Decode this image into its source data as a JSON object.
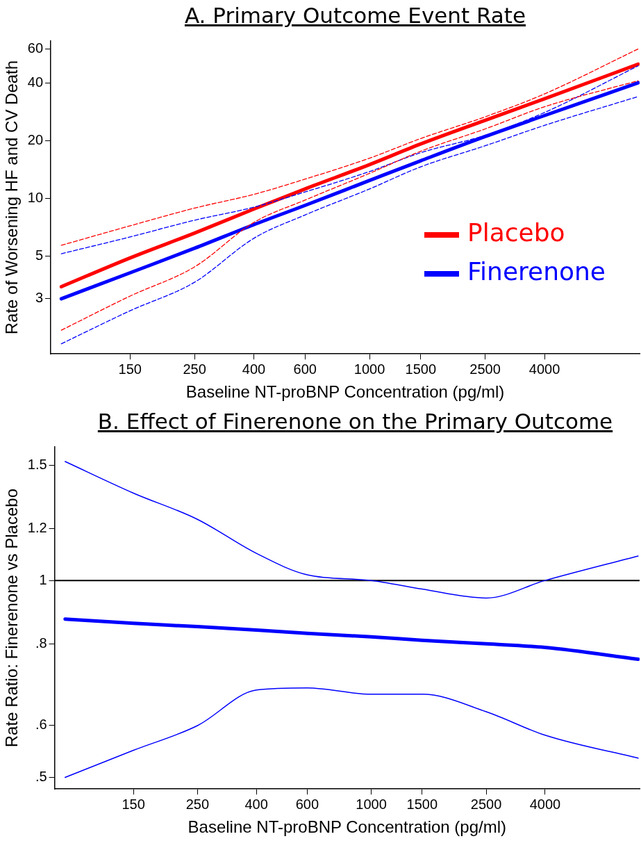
{
  "chart_data": [
    {
      "type": "line",
      "title": "A. Primary Outcome Event Rate",
      "xlabel": "Baseline NT-proBNP Concentration (pg/ml)",
      "ylabel": "Rate of Worsening HF and CV Death",
      "log": "xy",
      "grid": false,
      "legend": "right",
      "marker": "none",
      "x": [
        87,
        150,
        250,
        400,
        600,
        1000,
        1500,
        2500,
        4000,
        8400
      ],
      "xlim": [
        80,
        8500
      ],
      "xticks": [
        150,
        250,
        400,
        600,
        1000,
        1500,
        2500,
        4000
      ],
      "ylim": [
        1.55,
        66
      ],
      "yticks": [
        3,
        5,
        10,
        20,
        40,
        60
      ],
      "series": [
        {
          "name": "Placebo",
          "color": "#ff0000",
          "line_style": "solid",
          "values": [
            3.47,
            4.9,
            6.6,
            8.8,
            11.2,
            15,
            19.2,
            25.5,
            33,
            50
          ]
        },
        {
          "name": "Finerenone",
          "color": "#0000ff",
          "line_style": "solid",
          "values": [
            3.0,
            4.1,
            5.5,
            7.3,
            9.2,
            12.4,
            15.7,
            21,
            27,
            40
          ]
        },
        {
          "color": "#ff0000",
          "line_style": "dashed",
          "values": [
            5.7,
            7.2,
            8.9,
            10.5,
            12.6,
            16.2,
            20.5,
            26.6,
            35,
            60
          ]
        },
        {
          "color": "#ff0000",
          "line_style": "dashed",
          "values": [
            2.06,
            3.1,
            4.4,
            7.5,
            9.8,
            13.5,
            17.6,
            23,
            30,
            41
          ]
        },
        {
          "color": "#0000ff",
          "line_style": "dashed",
          "values": [
            5.15,
            6.3,
            7.7,
            9.0,
            10.8,
            13.8,
            17.3,
            21.3,
            28,
            49
          ]
        },
        {
          "color": "#0000ff",
          "line_style": "dashed",
          "values": [
            1.75,
            2.6,
            3.66,
            6.2,
            8.2,
            11.2,
            14.6,
            18.8,
            24,
            33.9
          ]
        }
      ]
    },
    {
      "type": "line",
      "title": "B. Effect of Finerenone on the Primary Outcome",
      "xlabel": "Baseline NT-proBNP Concentration (pg/ml)",
      "ylabel": "Rate Ratio: Finerenone vs Placebo",
      "log": "xy",
      "grid": false,
      "legend": false,
      "marker": "none",
      "x": [
        87,
        150,
        250,
        400,
        600,
        1000,
        1500,
        2500,
        4000,
        8400
      ],
      "xlim": [
        80,
        8500
      ],
      "xticks": [
        150,
        250,
        400,
        600,
        1000,
        1500,
        2500,
        4000
      ],
      "ylim": [
        0.48,
        1.6
      ],
      "yticks": [
        {
          "value": 0.5,
          "label": ".5"
        },
        {
          "value": 0.6,
          "label": ".6"
        },
        {
          "value": 0.8,
          "label": ".8"
        },
        1,
        1.2,
        1.5
      ],
      "ref_lines": [
        {
          "axis": "y",
          "value": 1,
          "color": "#000000"
        }
      ],
      "series": [
        {
          "color": "#0000ff",
          "line_style": "solid",
          "values": [
            0.873,
            0.86,
            0.85,
            0.84,
            0.83,
            0.82,
            0.81,
            0.8,
            0.79,
            0.758
          ]
        },
        {
          "color": "#0000ff",
          "line_style": "solid",
          "values": [
            1.52,
            1.36,
            1.24,
            1.1,
            1.02,
            1.0,
            0.97,
            0.94,
            1.0,
            1.09
          ]
        },
        {
          "color": "#0000ff",
          "line_style": "solid",
          "values": [
            0.5,
            0.55,
            0.6,
            0.68,
            0.685,
            0.67,
            0.67,
            0.63,
            0.58,
            0.535
          ]
        }
      ]
    }
  ]
}
